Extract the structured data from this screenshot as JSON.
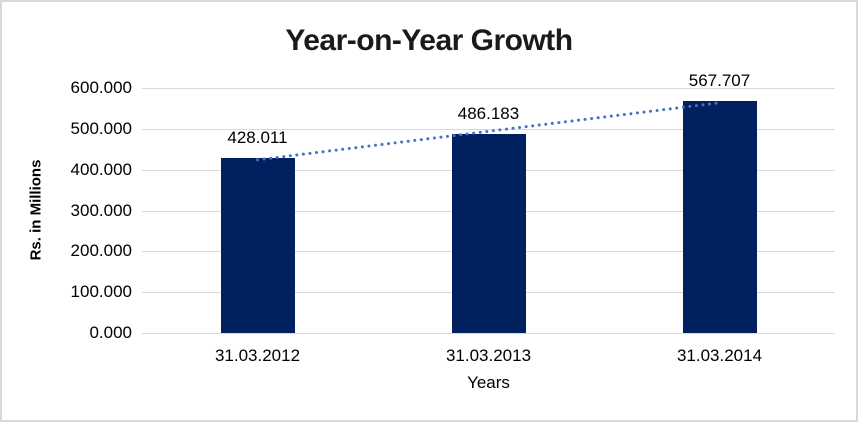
{
  "chart_data": {
    "type": "bar",
    "title": "Year-on-Year Growth",
    "categories": [
      "31.03.2012",
      "31.03.2013",
      "31.03.2014"
    ],
    "values": [
      428.011,
      486.183,
      567.707
    ],
    "value_labels": [
      "428.011",
      "486.183",
      "567.707"
    ],
    "xlabel": "Years",
    "ylabel": "Rs. in Millions",
    "ylim": [
      0,
      600
    ],
    "y_ticks": [
      {
        "value": 600,
        "label": "600.000"
      },
      {
        "value": 500,
        "label": "500.000"
      },
      {
        "value": 400,
        "label": "400.000"
      },
      {
        "value": 300,
        "label": "300.000"
      },
      {
        "value": 200,
        "label": "200.000"
      },
      {
        "value": 100,
        "label": "100.000"
      },
      {
        "value": 0,
        "label": "0.000"
      }
    ],
    "grid": true,
    "legend": "none",
    "trendline": {
      "type": "linear",
      "style": "dotted"
    },
    "colors": {
      "bar": "#002060",
      "trendline": "#4472C4",
      "gridline": "#D9D9D9",
      "text": "#000000",
      "frame_border": "#D9D9D9",
      "background": "#FFFFFF"
    }
  }
}
